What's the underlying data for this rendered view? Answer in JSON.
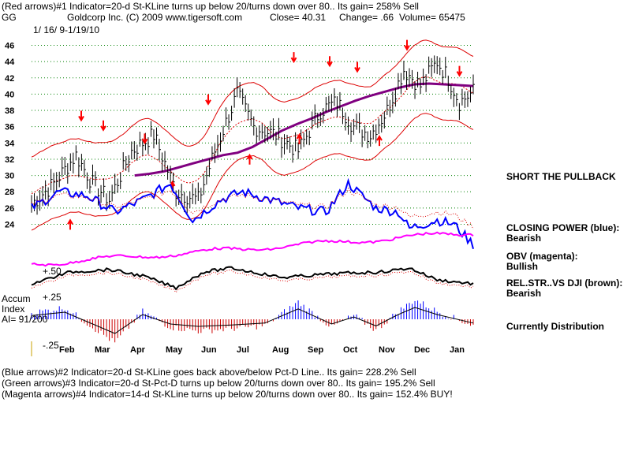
{
  "header": {
    "line1": "(Red arrows)#1 Indicator=20-d St-KLine turns up below 20/turns down over 80.. Its gain= 258% Sell",
    "symbol": "GG",
    "company": "Goldcorp Inc.  (C) 2009 www.tigersoft.com",
    "close_label": "Close=  40.31",
    "change_label": "Change= .66",
    "volume_label": "Volume= 65475",
    "date_range": "1/ 16/ 9-1/19/10"
  },
  "signals": {
    "short": "SHORT THE PULLBACK",
    "closing_power_label": "CLOSING POWER (blue):",
    "closing_power_value": "Bearish",
    "obv_label": "OBV (magenta):",
    "obv_value": "Bullish",
    "relstr_label": "REL.STR..VS DJI (brown):",
    "relstr_value": "Bearish",
    "distribution": "Currently Distribution"
  },
  "accum": {
    "label1": "Accum",
    "label2": "Index",
    "ai": "AI= 91/200",
    "lvl_plus50": "+.50",
    "lvl_plus25": "+.25",
    "lvl_minus25": "-.25"
  },
  "footer": {
    "line1": "(Blue arrows)#2 Indicator=20-d St-KLine goes back above/below Pct-D Line.. Its gain= 228.2% Sell",
    "line2": "(Green arrows)#3 Indicator=20-d St-Pct-D turns up below 20/turns down over 80.. Its gain= 195.2% Sell",
    "line3": "(Magenta arrows)#4 Indicator=14-d St-KLine turns up below 20/turns down over 80.. Its gain= 152.4% BUY!"
  },
  "chart_data": {
    "type": "line",
    "price_axis": {
      "ticks": [
        24,
        26,
        28,
        30,
        32,
        34,
        36,
        38,
        40,
        42,
        44,
        46
      ],
      "ylim": [
        22.5,
        47.5
      ]
    },
    "months": [
      "Feb",
      "Mar",
      "Apr",
      "May",
      "Jun",
      "Jul",
      "Aug",
      "Sep",
      "Oct",
      "Nov",
      "Dec",
      "Jan"
    ],
    "colors": {
      "price": "#000000",
      "bands": "#dd0000",
      "ma": "#800080",
      "closing_power": "#0000ff",
      "obv": "#ff00ff",
      "relstr": "#000000",
      "hist_pos": "#0000ff",
      "hist_neg": "#cc0000",
      "grid": "#008000",
      "arrow": "#ff0000"
    },
    "series": [
      {
        "name": "GG",
        "x": [
          1,
          2,
          3,
          4,
          5,
          6,
          7,
          8,
          9,
          10,
          11,
          12,
          13,
          14,
          15,
          16,
          17,
          18,
          19,
          20,
          21,
          22,
          23,
          24,
          25,
          26,
          27,
          28,
          29,
          30,
          31,
          32,
          33,
          34,
          35,
          36,
          37,
          38,
          39,
          40,
          41,
          42,
          43,
          44,
          45,
          46,
          47,
          48,
          49,
          50
        ],
        "values": [
          26.5,
          28,
          29,
          31,
          32.5,
          30,
          28,
          27.5,
          30,
          33,
          35,
          34,
          33,
          31,
          29,
          28,
          27,
          28,
          30,
          33,
          36,
          38,
          40,
          38,
          36,
          35,
          36,
          35,
          33,
          34,
          36,
          38,
          39,
          37,
          35,
          34,
          36,
          37,
          38,
          41,
          43,
          42,
          40,
          41,
          43,
          42,
          40,
          38,
          36,
          37
        ]
      }
    ],
    "series_b": [
      {
        "name": "MA",
        "x": [
          14,
          16,
          18,
          20,
          22,
          24,
          26,
          28,
          30,
          32,
          34,
          36,
          38,
          40,
          42,
          44,
          46,
          48,
          50,
          52,
          54,
          56,
          58,
          60
        ],
        "values": [
          30,
          30.2,
          30.5,
          31,
          31.5,
          32,
          32.5,
          32.8,
          33.5,
          34.5,
          35.5,
          36.3,
          37,
          37.8,
          38.5,
          39.2,
          39.8,
          40.3,
          40.8,
          41.2,
          41.3,
          41.2,
          41.1,
          41
        ]
      }
    ],
    "arrows_down": [
      [
        18,
        36.8
      ],
      [
        26,
        35.6
      ],
      [
        41,
        34
      ],
      [
        64,
        38.8
      ],
      [
        95,
        44
      ],
      [
        108,
        43.5
      ],
      [
        118,
        42.8
      ],
      [
        136,
        45.5
      ],
      [
        155,
        42.3
      ]
    ],
    "arrows_up": [
      [
        14,
        24.5
      ],
      [
        51,
        29.2
      ],
      [
        79,
        32.5
      ],
      [
        97,
        35
      ],
      [
        126,
        34.8
      ]
    ]
  }
}
